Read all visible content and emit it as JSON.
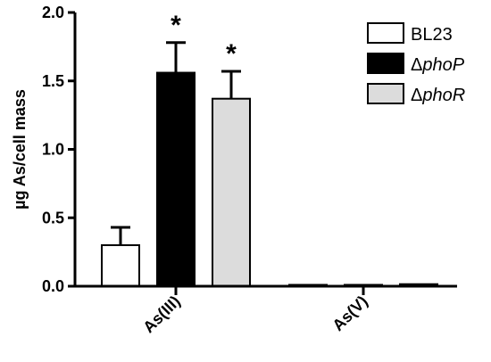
{
  "chart_data": {
    "type": "bar",
    "title": "",
    "xlabel": "",
    "ylabel": "µg As/cell mass",
    "ylim": [
      0,
      2.0
    ],
    "yticks": [
      "0.0",
      "0.5",
      "1.0",
      "1.5",
      "2.0"
    ],
    "grid": false,
    "legend_position": "top-right",
    "categories": [
      "As(III)",
      "As(V)"
    ],
    "series": [
      {
        "name": "BL23",
        "name_prefix": "",
        "name_italic": "",
        "legend_text": "BL23",
        "color": "#ffffff",
        "values": [
          0.3,
          0.01
        ],
        "errors": [
          0.13,
          0.0
        ],
        "annotations": [
          "",
          ""
        ]
      },
      {
        "name": "ΔphoP",
        "name_prefix": "Δ",
        "name_italic": "phoP",
        "legend_text": "ΔphoP",
        "color": "#000000",
        "values": [
          1.56,
          0.01
        ],
        "errors": [
          0.22,
          0.0
        ],
        "annotations": [
          "*",
          ""
        ]
      },
      {
        "name": "ΔphoR",
        "name_prefix": "Δ",
        "name_italic": "phoR",
        "legend_text": "ΔphoR",
        "color": "#dcdcdc",
        "values": [
          1.37,
          0.015
        ],
        "errors": [
          0.2,
          0.0
        ],
        "annotations": [
          "*",
          ""
        ]
      }
    ]
  }
}
